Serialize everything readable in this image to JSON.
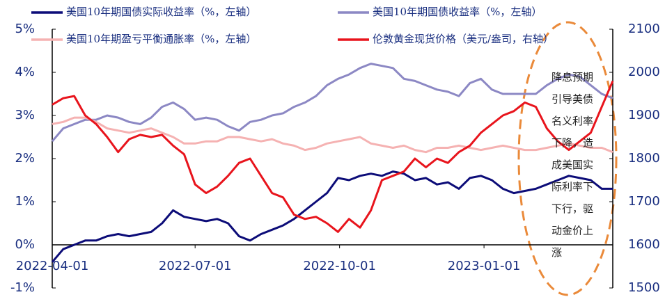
{
  "chart_data": {
    "type": "line",
    "legend": [
      [
        "美国10年期国债实际收益率（%，左轴）",
        "美国10年期国债收益率（%，左轴）"
      ],
      [
        "美国10年期盈亏平衡通胀率（%，左轴）",
        "伦敦黄金现货价格（美元/盎司，右轴）"
      ]
    ],
    "x": [
      "2022-04-01",
      "2022-04-08",
      "2022-04-15",
      "2022-04-22",
      "2022-04-29",
      "2022-05-06",
      "2022-05-13",
      "2022-05-20",
      "2022-05-27",
      "2022-06-03",
      "2022-06-10",
      "2022-06-17",
      "2022-06-24",
      "2022-07-01",
      "2022-07-08",
      "2022-07-15",
      "2022-07-22",
      "2022-07-29",
      "2022-08-05",
      "2022-08-12",
      "2022-08-19",
      "2022-08-26",
      "2022-09-02",
      "2022-09-09",
      "2022-09-16",
      "2022-09-23",
      "2022-09-30",
      "2022-10-07",
      "2022-10-14",
      "2022-10-21",
      "2022-10-28",
      "2022-11-04",
      "2022-11-11",
      "2022-11-18",
      "2022-11-25",
      "2022-12-02",
      "2022-12-09",
      "2022-12-16",
      "2022-12-23",
      "2022-12-30",
      "2023-01-06",
      "2023-01-13",
      "2023-01-20",
      "2023-01-27",
      "2023-02-03",
      "2023-02-10",
      "2023-02-17",
      "2023-02-24",
      "2023-03-03",
      "2023-03-10",
      "2023-03-17",
      "2023-03-24"
    ],
    "series": [
      {
        "name": "美国10年期国债实际收益率（%，左轴）",
        "color": "#0c0c78",
        "values": [
          -0.4,
          -0.1,
          0,
          0.1,
          0.1,
          0.2,
          0.25,
          0.2,
          0.25,
          0.3,
          0.5,
          0.8,
          0.65,
          0.6,
          0.55,
          0.6,
          0.5,
          0.2,
          0.1,
          0.25,
          0.35,
          0.45,
          0.6,
          0.8,
          1.0,
          1.2,
          1.55,
          1.5,
          1.6,
          1.65,
          1.6,
          1.7,
          1.65,
          1.5,
          1.55,
          1.4,
          1.45,
          1.3,
          1.55,
          1.6,
          1.5,
          1.3,
          1.2,
          1.25,
          1.3,
          1.4,
          1.5,
          1.6,
          1.55,
          1.5,
          1.3,
          1.3
        ]
      },
      {
        "name": "美国10年期国债收益率（%，左轴）",
        "color": "#8c88c4",
        "values": [
          2.4,
          2.7,
          2.8,
          2.9,
          2.9,
          3.0,
          2.95,
          2.85,
          2.8,
          2.95,
          3.2,
          3.3,
          3.15,
          2.9,
          2.95,
          2.9,
          2.75,
          2.65,
          2.85,
          2.9,
          3.0,
          3.05,
          3.2,
          3.3,
          3.45,
          3.7,
          3.85,
          3.95,
          4.1,
          4.2,
          4.15,
          4.1,
          3.85,
          3.8,
          3.7,
          3.6,
          3.55,
          3.45,
          3.75,
          3.85,
          3.6,
          3.5,
          3.5,
          3.5,
          3.5,
          3.7,
          3.85,
          3.95,
          3.9,
          3.7,
          3.5,
          3.4
        ]
      },
      {
        "name": "美国10年期盈亏平衡通胀率（%，左轴）",
        "color": "#f5b2b2",
        "values": [
          2.8,
          2.85,
          2.95,
          2.95,
          2.85,
          2.7,
          2.65,
          2.6,
          2.65,
          2.7,
          2.6,
          2.5,
          2.35,
          2.35,
          2.4,
          2.4,
          2.5,
          2.5,
          2.45,
          2.4,
          2.45,
          2.35,
          2.3,
          2.2,
          2.25,
          2.35,
          2.4,
          2.45,
          2.5,
          2.35,
          2.3,
          2.25,
          2.3,
          2.2,
          2.15,
          2.25,
          2.25,
          2.3,
          2.25,
          2.2,
          2.25,
          2.3,
          2.25,
          2.2,
          2.2,
          2.25,
          2.3,
          2.35,
          2.3,
          2.25,
          2.25,
          2.15
        ]
      },
      {
        "name": "伦敦黄金现货价格（美元/盎司，右轴）",
        "color": "#e8141c",
        "axis": "y2",
        "values": [
          1925,
          1940,
          1945,
          1900,
          1880,
          1850,
          1815,
          1845,
          1855,
          1850,
          1855,
          1830,
          1810,
          1740,
          1720,
          1735,
          1760,
          1790,
          1800,
          1760,
          1720,
          1710,
          1670,
          1660,
          1665,
          1650,
          1630,
          1660,
          1640,
          1680,
          1750,
          1760,
          1770,
          1800,
          1780,
          1800,
          1790,
          1815,
          1830,
          1860,
          1880,
          1900,
          1910,
          1930,
          1920,
          1870,
          1840,
          1820,
          1840,
          1860,
          1920,
          1980
        ]
      }
    ],
    "xlim": [
      "2022-04-01",
      "2023-03-24"
    ],
    "xticks": [
      "2022-04-01",
      "2022-07-01",
      "2022-10-01",
      "2023-01-01"
    ],
    "ylim": [
      -1,
      5
    ],
    "yticks": [
      {
        "value": -1,
        "label": "-1%"
      },
      {
        "value": 0,
        "label": "0%"
      },
      {
        "value": 1,
        "label": "1%"
      },
      {
        "value": 2,
        "label": "2%"
      },
      {
        "value": 3,
        "label": "3%"
      },
      {
        "value": 4,
        "label": "4%"
      },
      {
        "value": 5,
        "label": "5%"
      }
    ],
    "y2lim": [
      1500,
      2100
    ],
    "y2ticks": [
      1500,
      1600,
      1700,
      1800,
      1900,
      2000,
      2100
    ],
    "annotation": [
      "降息预期",
      "引导美债",
      "名义利率",
      "下降，造",
      "成美国实",
      "际利率下",
      "下行，驱",
      "动金价上",
      "涨"
    ]
  }
}
